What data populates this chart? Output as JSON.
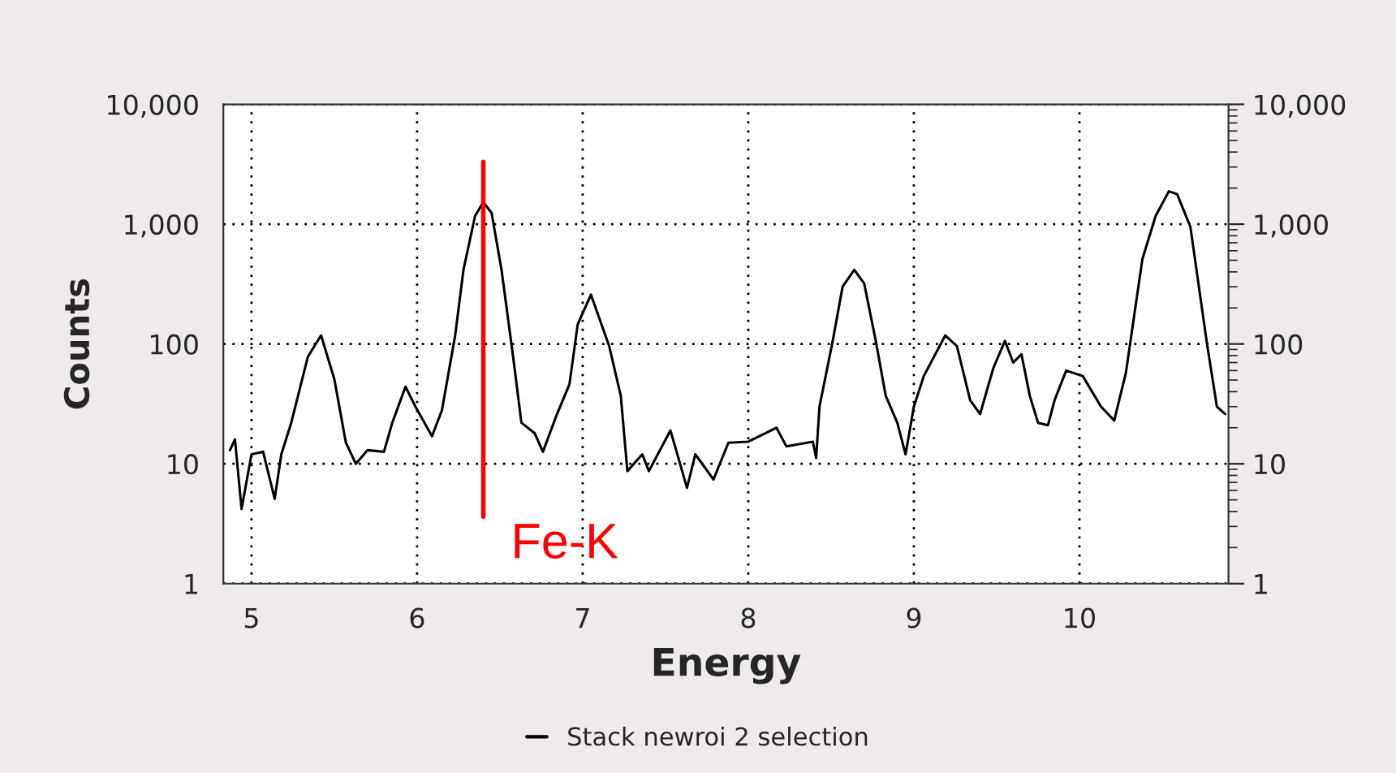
{
  "chart_data": {
    "type": "line",
    "xlabel": "Energy",
    "ylabel": "Counts",
    "x": [
      4.87,
      4.9,
      4.94,
      5.0,
      5.07,
      5.14,
      5.18,
      5.24,
      5.34,
      5.42,
      5.5,
      5.57,
      5.63,
      5.7,
      5.8,
      5.85,
      5.93,
      5.99,
      6.09,
      6.15,
      6.23,
      6.28,
      6.35,
      6.4,
      6.45,
      6.51,
      6.58,
      6.63,
      6.71,
      6.76,
      6.84,
      6.92,
      6.97,
      7.05,
      7.16,
      7.23,
      7.27,
      7.36,
      7.4,
      7.53,
      7.63,
      7.68,
      7.79,
      7.88,
      8.0,
      8.17,
      8.23,
      8.39,
      8.41,
      8.43,
      8.51,
      8.57,
      8.64,
      8.7,
      8.77,
      8.83,
      8.9,
      8.95,
      9.0,
      9.06,
      9.19,
      9.26,
      9.34,
      9.4,
      9.48,
      9.55,
      9.6,
      9.65,
      9.7,
      9.75,
      9.81,
      9.85,
      9.92,
      10.02,
      10.13,
      10.21,
      10.28,
      10.38,
      10.46,
      10.54,
      10.59,
      10.67,
      10.77,
      10.83,
      10.88
    ],
    "series": [
      {
        "name": "Stack newroi 2 selection",
        "color": "#000000",
        "values": [
          13,
          16,
          4.2,
          12,
          12.6,
          5.1,
          12,
          22,
          78,
          118,
          51,
          15,
          10,
          13,
          12.6,
          22,
          44,
          30,
          17,
          28,
          118,
          415,
          1170,
          1530,
          1240,
          415,
          78,
          22,
          18,
          12.6,
          25,
          46,
          146,
          258,
          96,
          37,
          8.7,
          12,
          8.7,
          19,
          6.3,
          12,
          7.4,
          15,
          15.3,
          20,
          14,
          15.3,
          11.2,
          30,
          106,
          302,
          415,
          320,
          106,
          37,
          22,
          12,
          30,
          54,
          118,
          96,
          34,
          26,
          63,
          106,
          70,
          82,
          37,
          22,
          21,
          34,
          60,
          54,
          30,
          23,
          57,
          510,
          1170,
          1880,
          1780,
          950,
          101,
          30,
          26
        ]
      }
    ],
    "xlim": [
      4.83,
      10.9
    ],
    "xticks": [
      5,
      6,
      7,
      8,
      9,
      10
    ],
    "log": "y",
    "ylim": [
      1,
      10000
    ],
    "yticks": [
      {
        "value": 1,
        "label": "1"
      },
      {
        "value": 10,
        "label": "10"
      },
      {
        "value": 100,
        "label": "100"
      },
      {
        "value": 1000,
        "label": "1,000"
      },
      {
        "value": 10000,
        "label": "10,000"
      }
    ],
    "ref_lines": [
      {
        "axis": "x",
        "value": 6.4,
        "label": "Fe-K",
        "color": "#ff0000"
      }
    ],
    "grid": true,
    "legend": "bottom",
    "line_style": "solid",
    "marker": "none"
  }
}
